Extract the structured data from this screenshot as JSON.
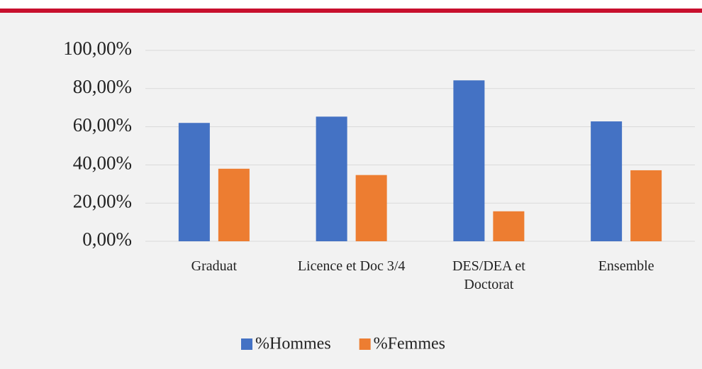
{
  "chart_data": {
    "type": "bar",
    "categories": [
      "Graduat",
      "Licence et Doc 3/4",
      "DES/DEA et Doctorat",
      "Ensemble"
    ],
    "series": [
      {
        "name": "%Hommes",
        "color": "#4472c4",
        "values": [
          62,
          65.3,
          84.3,
          62.8
        ]
      },
      {
        "name": "%Femmes",
        "color": "#ed7d31",
        "values": [
          38,
          34.7,
          15.7,
          37.2
        ]
      }
    ],
    "ylim": [
      0,
      100
    ],
    "yticks": [
      {
        "value": 0,
        "label": "0,00%"
      },
      {
        "value": 20,
        "label": "20,00%"
      },
      {
        "value": 40,
        "label": "40,00%"
      },
      {
        "value": 60,
        "label": "60,00%"
      },
      {
        "value": 80,
        "label": "80,00%"
      },
      {
        "value": 100,
        "label": "100,00%"
      }
    ],
    "grid": true,
    "legend": "bottom"
  }
}
